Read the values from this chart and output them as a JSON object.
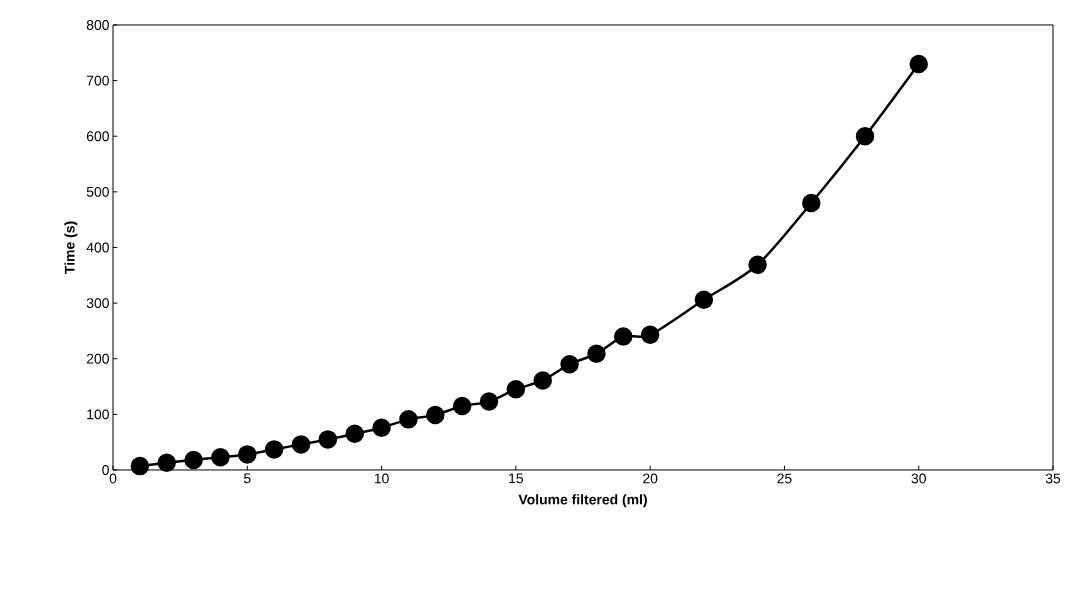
{
  "chart_data": {
    "type": "line",
    "xlabel": "Volume filtered (ml)",
    "ylabel": "Time (s)",
    "x": [
      1,
      2,
      3,
      4,
      5,
      6,
      7,
      8,
      9,
      10,
      11,
      12,
      13,
      14,
      15,
      16,
      17,
      18,
      19,
      20,
      22,
      24,
      26,
      28,
      30
    ],
    "values": [
      7,
      13,
      18,
      23,
      28,
      37,
      46,
      55,
      65,
      76,
      91,
      99,
      115,
      123,
      145,
      161,
      190,
      209,
      240,
      243,
      306,
      369,
      480,
      600,
      730
    ],
    "color": "#000000",
    "marker": "circle",
    "line_style": "solid",
    "grid": false,
    "xlim": [
      0,
      35
    ],
    "ylim": [
      0,
      800
    ],
    "xticks": [
      0,
      5,
      10,
      15,
      20,
      25,
      30,
      35
    ],
    "yticks": [
      0,
      100,
      200,
      300,
      400,
      500,
      600,
      700,
      800
    ]
  }
}
